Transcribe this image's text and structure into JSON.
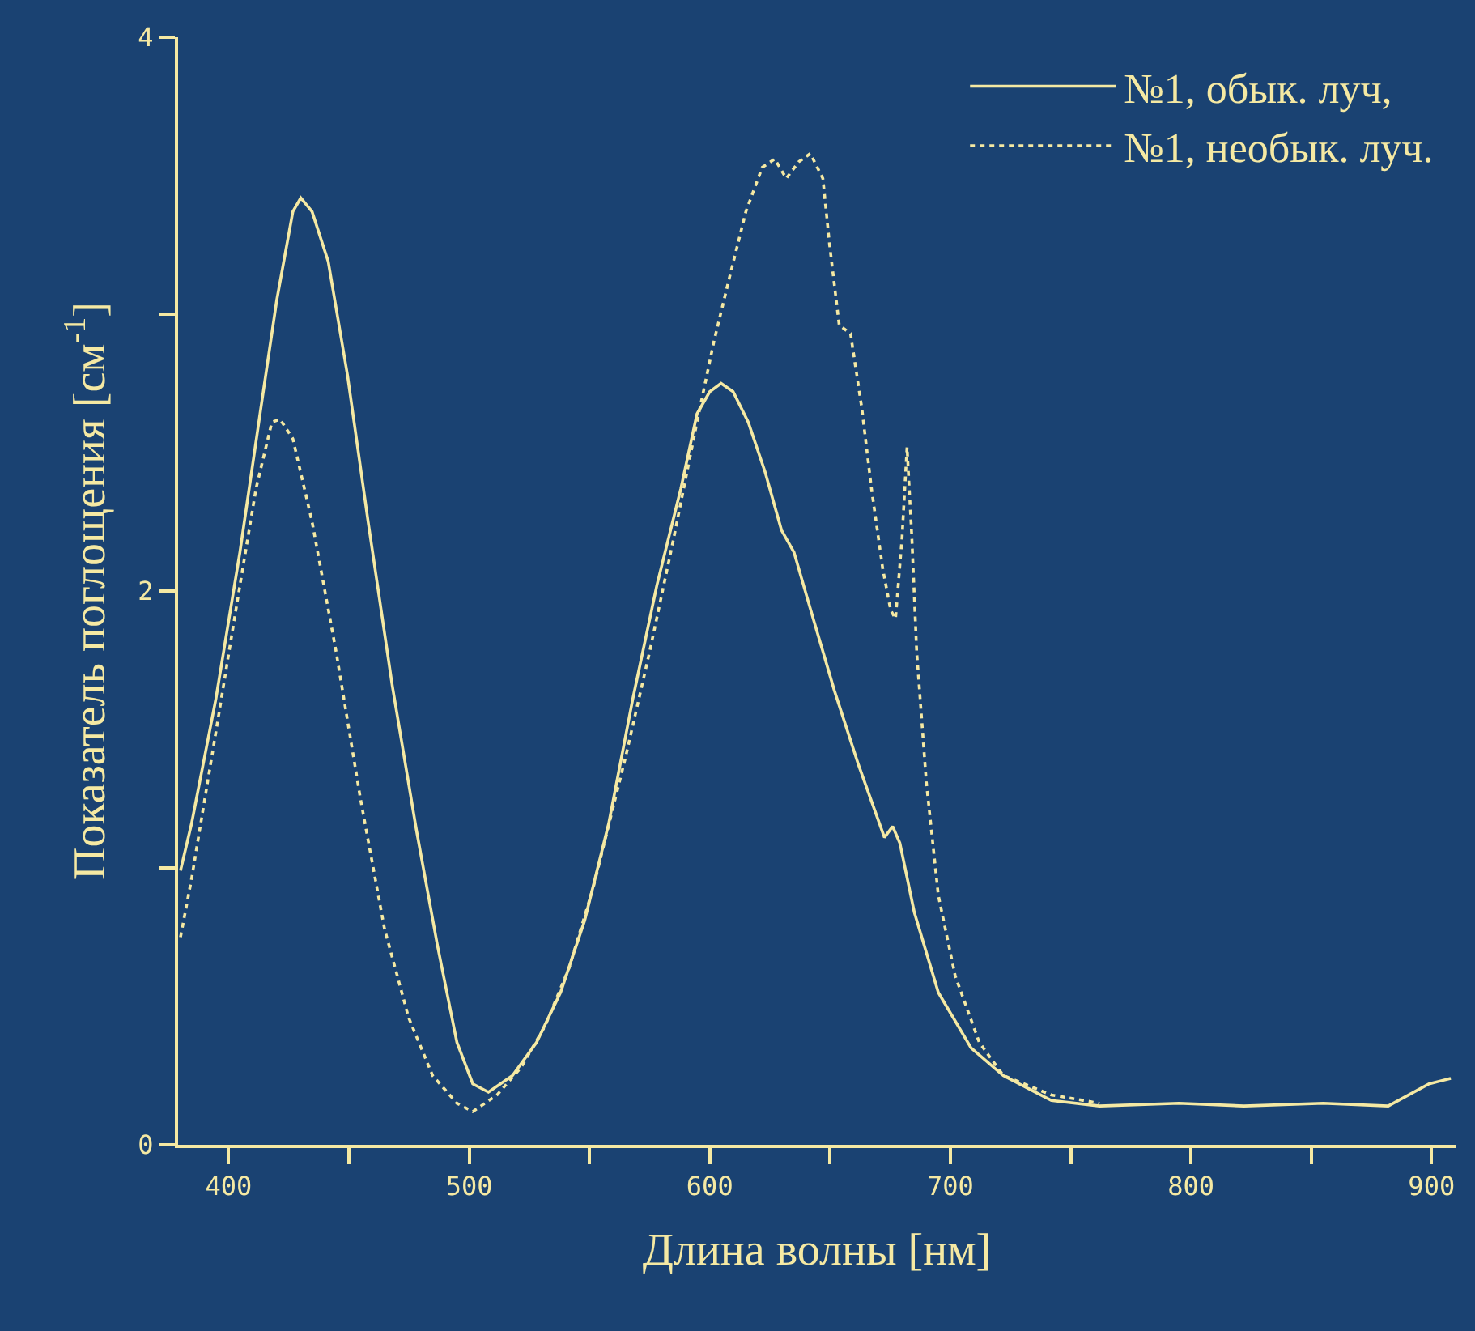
{
  "chart_data": {
    "type": "line",
    "xlabel": "Длина волны [нм]",
    "ylabel": "Показатель поглощения [см$^{-1}$]",
    "xlim": [
      379,
      910
    ],
    "ylim": [
      0,
      4
    ],
    "xticks": [
      400,
      {
        "value": 450,
        "label": null
      },
      500,
      {
        "value": 550,
        "label": null
      },
      600,
      {
        "value": 650,
        "label": null
      },
      700,
      {
        "value": 750,
        "label": null
      },
      800,
      {
        "value": 850,
        "label": null
      },
      900
    ],
    "yticks": [
      0,
      {
        "value": 1,
        "label": null
      },
      2,
      {
        "value": 3,
        "label": null
      },
      4
    ],
    "grid": false,
    "legend": "top right",
    "series": [
      {
        "name": "№1, обык. луч,",
        "color": "#f5e9a3",
        "line_style": "solid",
        "x": [
          380,
          384.6,
          394.7,
          404.7,
          413.4,
          420,
          426.7,
          430,
          434.7,
          441.4,
          449.4,
          458,
          468,
          478,
          486.8,
          494.9,
          501.5,
          508,
          518,
          528,
          538,
          548,
          558,
          568,
          578,
          588,
          594.7,
          600,
          604.7,
          609.7,
          616,
          623,
          629.8,
          635,
          643,
          651.8,
          661.9,
          672.6,
          676,
          679,
          685,
          695,
          708.6,
          722,
          742,
          762,
          795,
          822,
          855,
          882,
          899,
          908
        ],
        "values": [
          0.99,
          1.16,
          1.61,
          2.14,
          2.66,
          3.05,
          3.37,
          3.42,
          3.37,
          3.19,
          2.78,
          2.25,
          1.66,
          1.14,
          0.72,
          0.37,
          0.22,
          0.19,
          0.25,
          0.37,
          0.55,
          0.81,
          1.16,
          1.61,
          2.02,
          2.37,
          2.64,
          2.72,
          2.75,
          2.72,
          2.61,
          2.43,
          2.22,
          2.14,
          1.9,
          1.64,
          1.37,
          1.11,
          1.15,
          1.09,
          0.84,
          0.55,
          0.35,
          0.25,
          0.16,
          0.14,
          0.15,
          0.14,
          0.15,
          0.14,
          0.22,
          0.24
        ]
      },
      {
        "name": "№1, необык. луч.",
        "color": "#f5e9a3",
        "line_style": "dotted",
        "x": [
          380,
          384.6,
          394.7,
          404.7,
          411.4,
          418,
          421.4,
          426.7,
          434.7,
          444.7,
          454.8,
          464.8,
          474.8,
          484.8,
          494.9,
          501.5,
          511.6,
          521.6,
          531.6,
          541.6,
          551.6,
          565,
          575,
          585,
          594.7,
          601.7,
          608.4,
          615,
          621.8,
          627,
          631.8,
          637,
          641.8,
          647,
          649.8,
          653.8,
          658.5,
          663.2,
          667.2,
          671.9,
          675.2,
          677.2,
          679.9,
          682,
          684,
          686,
          690,
          695,
          702,
          712,
          722,
          742,
          762
        ],
        "values": [
          0.75,
          0.96,
          1.49,
          2.02,
          2.37,
          2.61,
          2.62,
          2.55,
          2.25,
          1.78,
          1.25,
          0.78,
          0.46,
          0.25,
          0.15,
          0.12,
          0.18,
          0.28,
          0.43,
          0.64,
          0.93,
          1.4,
          1.78,
          2.19,
          2.61,
          2.9,
          3.14,
          3.37,
          3.53,
          3.56,
          3.49,
          3.55,
          3.58,
          3.49,
          3.25,
          2.96,
          2.93,
          2.66,
          2.37,
          2.08,
          1.93,
          1.9,
          2.19,
          2.52,
          2.19,
          1.78,
          1.31,
          0.9,
          0.61,
          0.37,
          0.25,
          0.18,
          0.15
        ]
      }
    ]
  }
}
